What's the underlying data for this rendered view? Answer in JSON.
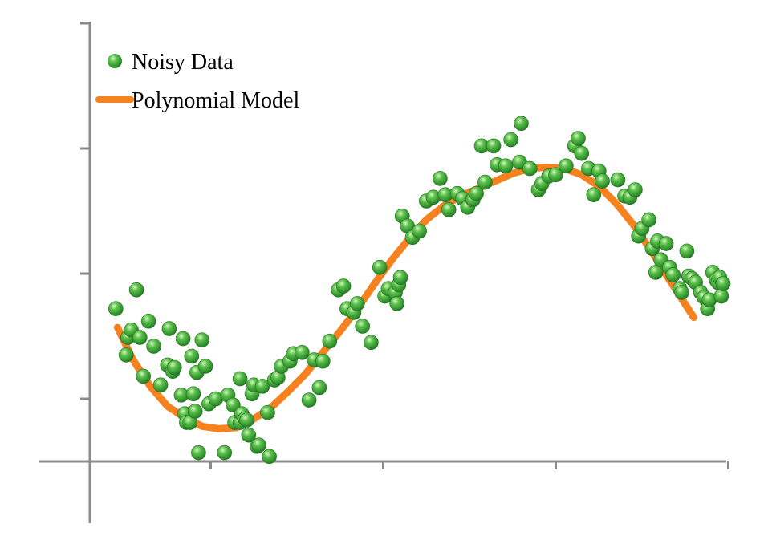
{
  "chart_data": {
    "type": "scatter",
    "title": "",
    "xlabel": "",
    "ylabel": "",
    "xlim": [
      -0.3,
      3.75
    ],
    "ylim": [
      -0.5,
      3.5
    ],
    "xticks": [
      0.7,
      1.7,
      2.7,
      3.7
    ],
    "yticks": [
      0.5,
      1.5,
      2.5,
      3.5
    ],
    "grid": false,
    "legend_position": "top-left",
    "series": [
      {
        "name": "Noisy Data",
        "kind": "scatter",
        "color": "#3FA83A",
        "points": [
          [
            0.15,
            1.22
          ],
          [
            0.21,
            0.85
          ],
          [
            0.22,
            0.99
          ],
          [
            0.24,
            1.05
          ],
          [
            0.27,
            1.37
          ],
          [
            0.29,
            0.99
          ],
          [
            0.31,
            0.68
          ],
          [
            0.34,
            1.12
          ],
          [
            0.37,
            0.92
          ],
          [
            0.41,
            0.61
          ],
          [
            0.45,
            0.77
          ],
          [
            0.46,
            1.06
          ],
          [
            0.48,
            0.72
          ],
          [
            0.49,
            0.75
          ],
          [
            0.53,
            0.53
          ],
          [
            0.54,
            0.98
          ],
          [
            0.55,
            0.38
          ],
          [
            0.56,
            0.31
          ],
          [
            0.58,
            0.31
          ],
          [
            0.59,
            0.84
          ],
          [
            0.6,
            0.54
          ],
          [
            0.61,
            0.4
          ],
          [
            0.62,
            0.71
          ],
          [
            0.63,
            0.07
          ],
          [
            0.65,
            0.97
          ],
          [
            0.67,
            0.76
          ],
          [
            0.69,
            0.46
          ],
          [
            0.73,
            0.5
          ],
          [
            0.78,
            0.07
          ],
          [
            0.8,
            0.53
          ],
          [
            0.83,
            0.45
          ],
          [
            0.84,
            0.31
          ],
          [
            0.87,
            0.31
          ],
          [
            0.87,
            0.66
          ],
          [
            0.88,
            0.38
          ],
          [
            0.9,
            0.34
          ],
          [
            0.91,
            0.33
          ],
          [
            0.92,
            0.21
          ],
          [
            0.94,
            0.54
          ],
          [
            0.95,
            0.61
          ],
          [
            0.97,
            0.12
          ],
          [
            0.98,
            0.13
          ],
          [
            1.0,
            0.6
          ],
          [
            1.03,
            0.39
          ],
          [
            1.04,
            0.04
          ],
          [
            1.07,
            0.65
          ],
          [
            1.09,
            0.67
          ],
          [
            1.11,
            0.76
          ],
          [
            1.16,
            0.8
          ],
          [
            1.18,
            0.86
          ],
          [
            1.23,
            0.87
          ],
          [
            1.27,
            0.49
          ],
          [
            1.3,
            0.81
          ],
          [
            1.33,
            0.59
          ],
          [
            1.35,
            0.8
          ],
          [
            1.39,
            0.96
          ],
          [
            1.44,
            1.37
          ],
          [
            1.47,
            1.4
          ],
          [
            1.49,
            1.22
          ],
          [
            1.53,
            1.19
          ],
          [
            1.55,
            1.26
          ],
          [
            1.58,
            1.08
          ],
          [
            1.63,
            0.95
          ],
          [
            1.68,
            1.55
          ],
          [
            1.71,
            1.32
          ],
          [
            1.73,
            1.38
          ],
          [
            1.77,
            1.35
          ],
          [
            1.78,
            1.26
          ],
          [
            1.79,
            1.41
          ],
          [
            1.8,
            1.47
          ],
          [
            1.81,
            1.96
          ],
          [
            1.84,
            1.88
          ],
          [
            1.87,
            1.79
          ],
          [
            1.91,
            1.84
          ],
          [
            1.95,
            2.08
          ],
          [
            1.99,
            2.11
          ],
          [
            2.03,
            2.26
          ],
          [
            2.06,
            2.13
          ],
          [
            2.08,
            2.01
          ],
          [
            2.13,
            2.14
          ],
          [
            2.16,
            2.1
          ],
          [
            2.19,
            2.03
          ],
          [
            2.22,
            2.09
          ],
          [
            2.24,
            2.14
          ],
          [
            2.27,
            2.52
          ],
          [
            2.29,
            2.23
          ],
          [
            2.34,
            2.52
          ],
          [
            2.36,
            2.37
          ],
          [
            2.41,
            2.36
          ],
          [
            2.44,
            2.57
          ],
          [
            2.49,
            2.39
          ],
          [
            2.5,
            2.7
          ],
          [
            2.55,
            2.34
          ],
          [
            2.6,
            2.17
          ],
          [
            2.62,
            2.22
          ],
          [
            2.66,
            2.28
          ],
          [
            2.7,
            2.29
          ],
          [
            2.76,
            2.36
          ],
          [
            2.81,
            2.52
          ],
          [
            2.83,
            2.58
          ],
          [
            2.85,
            2.46
          ],
          [
            2.89,
            2.34
          ],
          [
            2.92,
            2.13
          ],
          [
            2.95,
            2.32
          ],
          [
            2.97,
            2.24
          ],
          [
            3.06,
            2.25
          ],
          [
            3.1,
            2.12
          ],
          [
            3.13,
            2.11
          ],
          [
            3.16,
            2.17
          ],
          [
            3.18,
            1.8
          ],
          [
            3.2,
            1.86
          ],
          [
            3.24,
            1.93
          ],
          [
            3.26,
            1.7
          ],
          [
            3.28,
            1.51
          ],
          [
            3.29,
            1.76
          ],
          [
            3.31,
            1.61
          ],
          [
            3.34,
            1.74
          ],
          [
            3.36,
            1.55
          ],
          [
            3.38,
            1.49
          ],
          [
            3.42,
            1.38
          ],
          [
            3.43,
            1.35
          ],
          [
            3.46,
            1.68
          ],
          [
            3.47,
            1.48
          ],
          [
            3.49,
            1.46
          ],
          [
            3.51,
            1.43
          ],
          [
            3.54,
            1.35
          ],
          [
            3.56,
            1.31
          ],
          [
            3.58,
            1.22
          ],
          [
            3.59,
            1.29
          ],
          [
            3.61,
            1.51
          ],
          [
            3.63,
            1.45
          ],
          [
            3.64,
            1.43
          ],
          [
            3.65,
            1.47
          ],
          [
            3.66,
            1.32
          ],
          [
            3.67,
            1.42
          ]
        ]
      },
      {
        "name": "Polynomial Model",
        "kind": "line",
        "color": "#F5811F",
        "points": [
          [
            0.16,
            1.07
          ],
          [
            0.25,
            0.81
          ],
          [
            0.35,
            0.6
          ],
          [
            0.45,
            0.44
          ],
          [
            0.55,
            0.35
          ],
          [
            0.65,
            0.28
          ],
          [
            0.75,
            0.26
          ],
          [
            0.85,
            0.27
          ],
          [
            0.95,
            0.34
          ],
          [
            1.05,
            0.43
          ],
          [
            1.15,
            0.56
          ],
          [
            1.25,
            0.7
          ],
          [
            1.35,
            0.87
          ],
          [
            1.45,
            1.04
          ],
          [
            1.55,
            1.22
          ],
          [
            1.65,
            1.42
          ],
          [
            1.75,
            1.61
          ],
          [
            1.85,
            1.78
          ],
          [
            1.95,
            1.93
          ],
          [
            2.05,
            2.04
          ],
          [
            2.15,
            2.12
          ],
          [
            2.25,
            2.18
          ],
          [
            2.35,
            2.24
          ],
          [
            2.45,
            2.3
          ],
          [
            2.55,
            2.34
          ],
          [
            2.65,
            2.35
          ],
          [
            2.75,
            2.34
          ],
          [
            2.85,
            2.29
          ],
          [
            2.95,
            2.2
          ],
          [
            3.05,
            2.06
          ],
          [
            3.15,
            1.89
          ],
          [
            3.25,
            1.69
          ],
          [
            3.34,
            1.49
          ],
          [
            3.42,
            1.32
          ],
          [
            3.5,
            1.15
          ]
        ]
      }
    ]
  }
}
